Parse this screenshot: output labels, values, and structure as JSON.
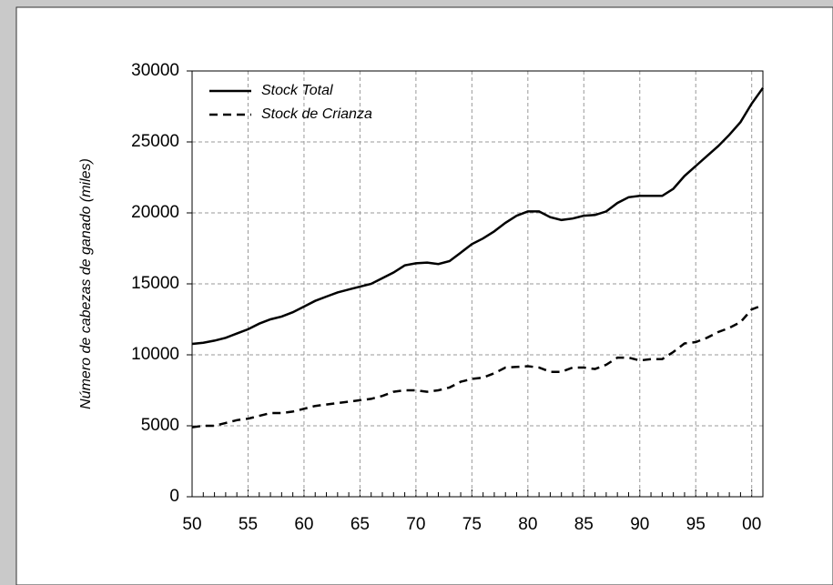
{
  "chart_data": {
    "type": "line",
    "y_label": "Número de cabezas de ganado (miles)",
    "categories": [
      "50",
      null,
      null,
      null,
      null,
      "55",
      null,
      null,
      null,
      null,
      "60",
      null,
      null,
      null,
      null,
      "65",
      null,
      null,
      null,
      null,
      "70",
      null,
      null,
      null,
      null,
      "75",
      null,
      null,
      null,
      null,
      "80",
      null,
      null,
      null,
      null,
      "85",
      null,
      null,
      null,
      null,
      "90",
      null,
      null,
      null,
      null,
      "95",
      null,
      null,
      null,
      null,
      "00",
      null
    ],
    "series": [
      {
        "name": "Stock Total",
        "color": "#000000",
        "dash": "solid",
        "values": [
          10770,
          10850,
          11000,
          11200,
          11500,
          11800,
          12200,
          12500,
          12700,
          13000,
          13400,
          13800,
          14100,
          14400,
          14600,
          14800,
          15000,
          15400,
          15800,
          16300,
          16450,
          16500,
          16400,
          16600,
          17200,
          17800,
          18200,
          18700,
          19300,
          19800,
          20100,
          20100,
          19700,
          19500,
          19600,
          19800,
          19850,
          20100,
          20700,
          21100,
          21200,
          21200,
          21200,
          21700,
          22600,
          23300,
          24000,
          24700,
          25500,
          26400,
          27700,
          28800
        ]
      },
      {
        "name": "Stock de Crianza",
        "color": "#000000",
        "dash": "dashed",
        "values": [
          4900,
          5000,
          5000,
          5200,
          5400,
          5500,
          5700,
          5900,
          5900,
          6000,
          6200,
          6400,
          6500,
          6600,
          6700,
          6800,
          6900,
          7100,
          7400,
          7500,
          7500,
          7400,
          7500,
          7700,
          8100,
          8300,
          8400,
          8700,
          9100,
          9150,
          9200,
          9100,
          8800,
          8800,
          9100,
          9100,
          9000,
          9300,
          9800,
          9800,
          9600,
          9700,
          9700,
          10200,
          10800,
          10900,
          11200,
          11600,
          11900,
          12300,
          13200,
          13500
        ]
      }
    ],
    "ylim": [
      0,
      30000
    ],
    "yticks": [
      0,
      5000,
      10000,
      15000,
      20000,
      25000,
      30000
    ],
    "grid": true,
    "legend": "upper-left"
  }
}
